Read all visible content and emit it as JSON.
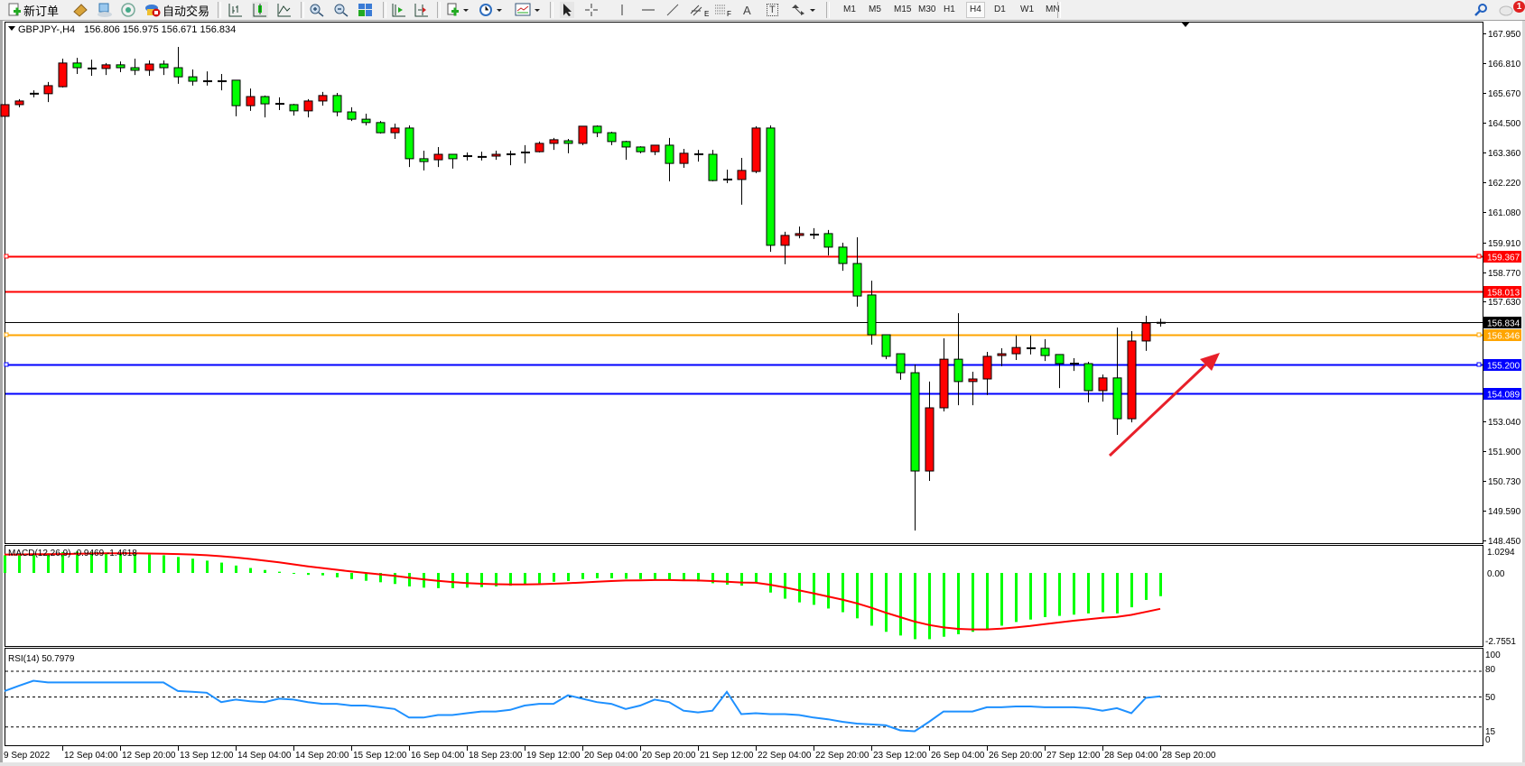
{
  "toolbar": {
    "new_order": "新订单",
    "auto_trading": "自动交易",
    "timeframes": [
      "M1",
      "M5",
      "M15",
      "M30",
      "H1",
      "H4",
      "D1",
      "W1",
      "MN"
    ],
    "active_timeframe": "H4",
    "notification_count": "1",
    "drawing_tool_e": "E",
    "drawing_tool_f": "F",
    "text_tool": "A",
    "label_tool": "T"
  },
  "chart": {
    "symbol_label": "GBPJPY-,H4",
    "ohlc_readout": "156.806 156.975 156.671 156.834",
    "price_axis": [
      "167.950",
      "166.810",
      "165.670",
      "164.500",
      "163.360",
      "162.220",
      "161.080",
      "159.910",
      "158.770",
      "157.630",
      "153.040",
      "151.900",
      "150.730",
      "149.590",
      "148.450"
    ],
    "horizontal_lines": [
      {
        "price": "159.367",
        "color": "#ff0000"
      },
      {
        "price": "158.013",
        "color": "#ff0000"
      },
      {
        "price": "156.834",
        "color": "#000000"
      },
      {
        "price": "156.346",
        "color": "#ffa500"
      },
      {
        "price": "155.200",
        "color": "#0000ff"
      },
      {
        "price": "154.089",
        "color": "#0000ff"
      }
    ],
    "bull_color": "#ff0000",
    "bear_color": "#00ff00",
    "arrow_color": "#e8202a",
    "time_axis": [
      "9 Sep 2022",
      "12 Sep 04:00",
      "12 Sep 20:00",
      "13 Sep 12:00",
      "14 Sep 04:00",
      "14 Sep 20:00",
      "15 Sep 12:00",
      "16 Sep 04:00",
      "18 Sep 23:00",
      "19 Sep 12:00",
      "20 Sep 04:00",
      "20 Sep 20:00",
      "21 Sep 12:00",
      "22 Sep 04:00",
      "22 Sep 20:00",
      "23 Sep 12:00",
      "26 Sep 04:00",
      "26 Sep 20:00",
      "27 Sep 12:00",
      "28 Sep 04:00",
      "28 Sep 20:00"
    ]
  },
  "macd": {
    "label": "MACD(12,26,9) -0.9469 -1.4618",
    "axis": [
      "1.0294",
      "0.00",
      "-2.7551"
    ]
  },
  "rsi": {
    "label": "RSI(14) 50.7979",
    "axis": [
      "100",
      "80",
      "50",
      "15",
      "0"
    ]
  },
  "chart_data": [
    {
      "type": "candlestick",
      "title": "GBPJPY-,H4",
      "ylim": [
        148.45,
        167.95
      ],
      "ohlc": [
        [
          164.76,
          165.24,
          164.58,
          165.21
        ],
        [
          165.21,
          165.42,
          165.11,
          165.35
        ],
        [
          165.63,
          165.76,
          165.49,
          165.63
        ],
        [
          165.63,
          166.08,
          165.31,
          165.94
        ],
        [
          165.9,
          166.98,
          165.87,
          166.81
        ],
        [
          166.81,
          167.01,
          166.39,
          166.63
        ],
        [
          166.6,
          166.94,
          166.32,
          166.6
        ],
        [
          166.6,
          166.81,
          166.35,
          166.74
        ],
        [
          166.74,
          166.87,
          166.46,
          166.63
        ],
        [
          166.63,
          166.98,
          166.35,
          166.53
        ],
        [
          166.53,
          166.91,
          166.32,
          166.77
        ],
        [
          166.77,
          166.91,
          166.35,
          166.63
        ],
        [
          166.63,
          167.43,
          166.01,
          166.28
        ],
        [
          166.28,
          166.56,
          165.94,
          166.11
        ],
        [
          166.11,
          166.49,
          165.94,
          166.11
        ],
        [
          166.11,
          166.39,
          165.76,
          166.11
        ],
        [
          166.15,
          166.15,
          164.76,
          165.17
        ],
        [
          165.17,
          165.83,
          164.97,
          165.52
        ],
        [
          165.52,
          165.56,
          164.72,
          165.24
        ],
        [
          165.24,
          165.49,
          165.0,
          165.24
        ],
        [
          165.21,
          165.24,
          164.79,
          164.97
        ],
        [
          164.97,
          165.42,
          164.72,
          165.35
        ],
        [
          165.35,
          165.7,
          165.17,
          165.56
        ],
        [
          165.56,
          165.66,
          164.76,
          164.93
        ],
        [
          164.93,
          165.11,
          164.58,
          164.65
        ],
        [
          164.65,
          164.86,
          164.41,
          164.52
        ],
        [
          164.52,
          164.58,
          164.1,
          164.13
        ],
        [
          164.13,
          164.48,
          163.89,
          164.31
        ],
        [
          164.31,
          164.41,
          162.81,
          163.13
        ],
        [
          163.13,
          163.44,
          162.68,
          163.02
        ],
        [
          163.09,
          163.58,
          162.81,
          163.3
        ],
        [
          163.3,
          163.3,
          162.75,
          163.13
        ],
        [
          163.23,
          163.37,
          163.06,
          163.23
        ],
        [
          163.2,
          163.4,
          163.06,
          163.2
        ],
        [
          163.23,
          163.44,
          163.09,
          163.3
        ],
        [
          163.3,
          163.44,
          162.88,
          163.3
        ],
        [
          163.34,
          163.65,
          162.95,
          163.4
        ],
        [
          163.4,
          163.79,
          163.37,
          163.72
        ],
        [
          163.72,
          163.93,
          163.47,
          163.86
        ],
        [
          163.82,
          163.89,
          163.34,
          163.72
        ],
        [
          163.72,
          164.38,
          163.65,
          164.38
        ],
        [
          164.38,
          164.41,
          163.96,
          164.13
        ],
        [
          164.13,
          164.17,
          163.65,
          163.79
        ],
        [
          163.79,
          163.82,
          163.09,
          163.58
        ],
        [
          163.58,
          163.61,
          163.34,
          163.4
        ],
        [
          163.4,
          163.65,
          163.27,
          163.65
        ],
        [
          163.65,
          163.93,
          162.26,
          162.95
        ],
        [
          162.95,
          163.51,
          162.78,
          163.34
        ],
        [
          163.3,
          163.47,
          163.02,
          163.3
        ],
        [
          163.3,
          163.47,
          162.26,
          162.29
        ],
        [
          162.33,
          162.71,
          162.19,
          162.33
        ],
        [
          162.33,
          163.16,
          161.36,
          162.68
        ],
        [
          162.64,
          164.38,
          162.57,
          164.31
        ],
        [
          164.31,
          164.41,
          159.55,
          159.8
        ],
        [
          159.8,
          160.32,
          159.07,
          160.18
        ],
        [
          160.18,
          160.52,
          160.07,
          160.25
        ],
        [
          160.21,
          160.46,
          160.04,
          160.21
        ],
        [
          160.25,
          160.39,
          159.41,
          159.73
        ],
        [
          159.73,
          159.9,
          158.82,
          159.1
        ],
        [
          159.1,
          160.11,
          157.44,
          157.85
        ],
        [
          157.89,
          158.44,
          155.98,
          156.36
        ],
        [
          156.36,
          156.36,
          155.42,
          155.53
        ],
        [
          155.63,
          155.63,
          154.63,
          154.9
        ],
        [
          154.9,
          155.22,
          148.83,
          151.12
        ],
        [
          151.12,
          154.56,
          150.74,
          153.55
        ],
        [
          153.55,
          156.22,
          153.41,
          155.42
        ],
        [
          155.42,
          157.19,
          153.65,
          154.56
        ],
        [
          154.56,
          154.94,
          153.65,
          154.66
        ],
        [
          154.66,
          155.7,
          154.04,
          155.53
        ],
        [
          155.56,
          155.84,
          155.15,
          155.63
        ],
        [
          155.63,
          156.33,
          155.39,
          155.87
        ],
        [
          155.84,
          156.33,
          155.6,
          155.84
        ],
        [
          155.84,
          156.19,
          155.35,
          155.56
        ],
        [
          155.6,
          155.6,
          154.31,
          155.25
        ],
        [
          155.25,
          155.46,
          154.97,
          155.25
        ],
        [
          155.25,
          155.32,
          153.76,
          154.21
        ],
        [
          154.21,
          154.83,
          153.79,
          154.7
        ],
        [
          154.7,
          156.64,
          152.51,
          153.13
        ],
        [
          153.13,
          156.5,
          152.99,
          156.12
        ],
        [
          156.12,
          157.09,
          155.74,
          156.81
        ],
        [
          156.806,
          156.975,
          156.671,
          156.834
        ]
      ]
    },
    {
      "type": "bar",
      "title": "MACD(12,26,9)",
      "ylim": [
        -2.7551,
        1.0294
      ],
      "histogram": [
        0.72,
        0.75,
        0.78,
        0.8,
        0.85,
        0.87,
        0.85,
        0.82,
        0.8,
        0.78,
        0.75,
        0.72,
        0.65,
        0.58,
        0.5,
        0.42,
        0.3,
        0.2,
        0.12,
        0.05,
        -0.02,
        -0.08,
        -0.1,
        -0.18,
        -0.25,
        -0.32,
        -0.38,
        -0.45,
        -0.55,
        -0.6,
        -0.62,
        -0.62,
        -0.6,
        -0.58,
        -0.55,
        -0.52,
        -0.48,
        -0.42,
        -0.36,
        -0.33,
        -0.25,
        -0.22,
        -0.22,
        -0.24,
        -0.25,
        -0.25,
        -0.3,
        -0.32,
        -0.35,
        -0.42,
        -0.48,
        -0.52,
        -0.42,
        -0.8,
        -1.05,
        -1.2,
        -1.3,
        -1.45,
        -1.6,
        -1.85,
        -2.15,
        -2.4,
        -2.55,
        -2.7,
        -2.7,
        -2.6,
        -2.5,
        -2.4,
        -2.3,
        -2.15,
        -2.0,
        -1.9,
        -1.8,
        -1.75,
        -1.7,
        -1.65,
        -1.6,
        -1.65,
        -1.4,
        -1.1,
        -0.9469
      ],
      "signal": [
        0.75,
        0.75,
        0.76,
        0.76,
        0.77,
        0.78,
        0.79,
        0.8,
        0.8,
        0.8,
        0.79,
        0.78,
        0.77,
        0.75,
        0.72,
        0.68,
        0.63,
        0.57,
        0.5,
        0.43,
        0.35,
        0.27,
        0.2,
        0.13,
        0.06,
        0,
        -0.06,
        -0.12,
        -0.19,
        -0.26,
        -0.32,
        -0.37,
        -0.41,
        -0.44,
        -0.46,
        -0.47,
        -0.47,
        -0.46,
        -0.44,
        -0.42,
        -0.39,
        -0.36,
        -0.33,
        -0.31,
        -0.3,
        -0.29,
        -0.29,
        -0.3,
        -0.31,
        -0.33,
        -0.36,
        -0.39,
        -0.4,
        -0.48,
        -0.59,
        -0.71,
        -0.83,
        -0.96,
        -1.09,
        -1.24,
        -1.42,
        -1.62,
        -1.8,
        -1.98,
        -2.12,
        -2.22,
        -2.28,
        -2.3,
        -2.3,
        -2.27,
        -2.22,
        -2.16,
        -2.09,
        -2.02,
        -1.95,
        -1.89,
        -1.83,
        -1.79,
        -1.71,
        -1.59,
        -1.4618
      ]
    },
    {
      "type": "line",
      "title": "RSI(14)",
      "ylim": [
        0,
        100
      ],
      "levels": [
        80,
        50,
        15
      ],
      "values": [
        57,
        63,
        69,
        67,
        67,
        67,
        67,
        67,
        67,
        67,
        67,
        67,
        57,
        56,
        55,
        44,
        47,
        45,
        44,
        48,
        47,
        44,
        42,
        42,
        40,
        40,
        38,
        36,
        26,
        26,
        29,
        29,
        31,
        33,
        33,
        35,
        40,
        42,
        42,
        52,
        48,
        44,
        42,
        36,
        40,
        47,
        44,
        34,
        32,
        34,
        56,
        30,
        31,
        30,
        30,
        29,
        26,
        24,
        21,
        19,
        18,
        17,
        11,
        10,
        21,
        33,
        33,
        33,
        38,
        38,
        39,
        39,
        38,
        38,
        38,
        37,
        34,
        37,
        31,
        49,
        50.7979
      ]
    }
  ]
}
